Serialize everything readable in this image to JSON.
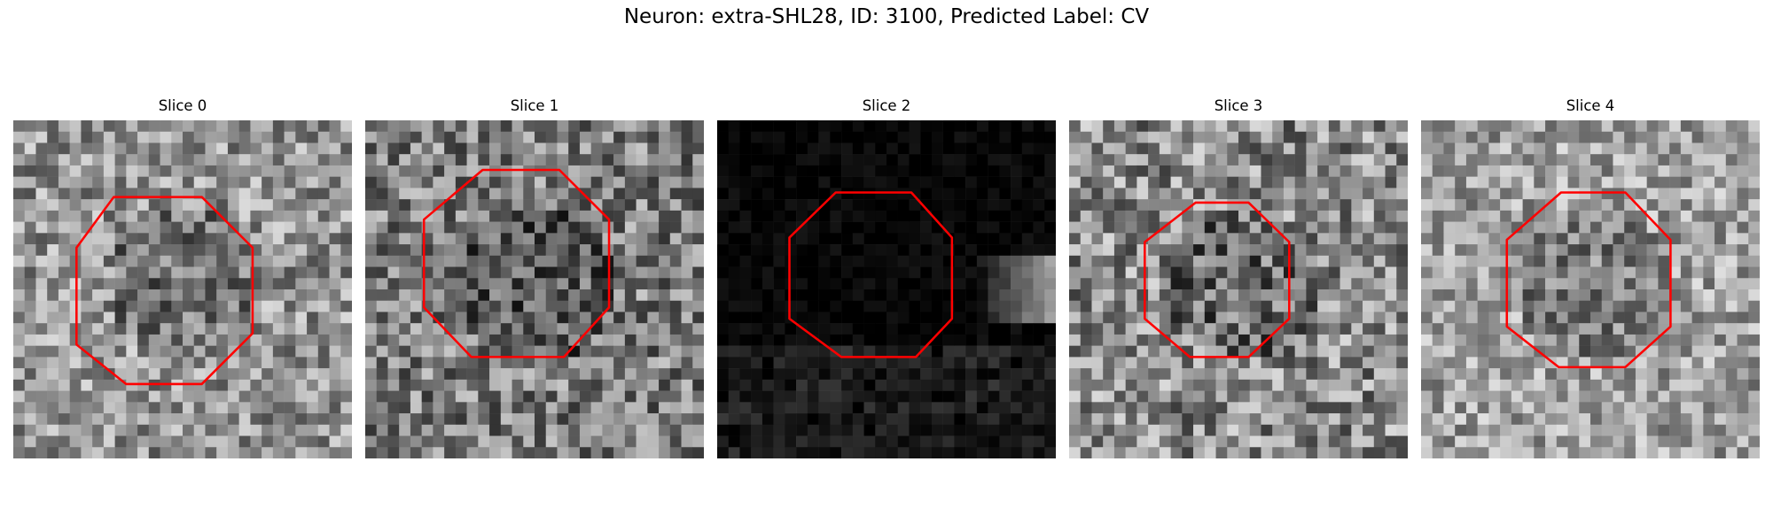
{
  "suptitle": "Neuron: extra-SHL28, ID: 3100, Predicted Label: CV",
  "contour_color": "#ff0000",
  "panels": [
    {
      "title": "Slice 0",
      "mean": 148,
      "spread": 70,
      "seed": 11
    },
    {
      "title": "Slice 1",
      "mean": 125,
      "spread": 75,
      "seed": 23
    },
    {
      "title": "Slice 2",
      "mean": 6,
      "spread": 16,
      "seed": 37
    },
    {
      "title": "Slice 3",
      "mean": 138,
      "spread": 80,
      "seed": 41
    },
    {
      "title": "Slice 4",
      "mean": 160,
      "spread": 65,
      "seed": 53
    }
  ]
}
